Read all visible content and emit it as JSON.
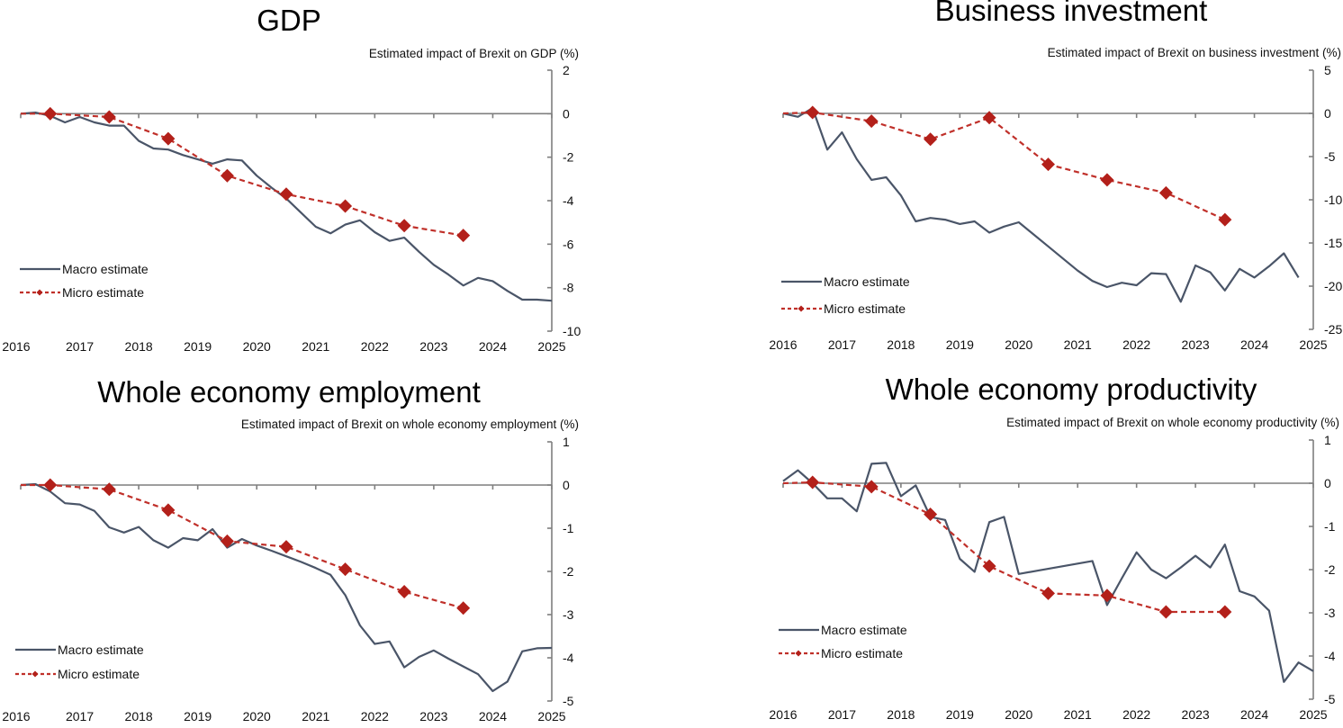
{
  "colors": {
    "macro": "#4a5568",
    "micro": "#b3201a",
    "axis": "#7f7f7f"
  },
  "chart_data": [
    {
      "type": "line",
      "title": "GDP",
      "ylabel": "Estimated impact of Brexit on GDP (%)",
      "xlabel": "",
      "xlim": [
        2016,
        2025
      ],
      "ylim": [
        -10,
        2
      ],
      "xticks": [
        "2016",
        "2017",
        "2018",
        "2019",
        "2020",
        "2021",
        "2022",
        "2023",
        "2024",
        "2025"
      ],
      "yticks": [
        "2",
        "0",
        "-2",
        "-4",
        "-6",
        "-8",
        "-10"
      ],
      "ytick_values": [
        2,
        0,
        -2,
        -4,
        -6,
        -8,
        -10
      ],
      "legend": [
        "Macro estimate",
        "Micro estimate"
      ],
      "legend_position": "bottom-left",
      "series": [
        {
          "name": "Macro estimate",
          "x": [
            2016.0,
            2016.25,
            2016.5,
            2016.75,
            2017.0,
            2017.25,
            2017.5,
            2017.75,
            2018.0,
            2018.25,
            2018.5,
            2018.75,
            2019.0,
            2019.25,
            2019.5,
            2019.75,
            2020.0,
            2020.25,
            2020.5,
            2020.75,
            2021.0,
            2021.25,
            2021.5,
            2021.75,
            2022.0,
            2022.25,
            2022.5,
            2022.75,
            2023.0,
            2023.25,
            2023.5,
            2023.75,
            2024.0,
            2024.25,
            2024.5,
            2024.75,
            2025.0
          ],
          "values": [
            0.0,
            0.05,
            -0.1,
            -0.4,
            -0.15,
            -0.4,
            -0.55,
            -0.55,
            -1.25,
            -1.6,
            -1.65,
            -1.9,
            -2.1,
            -2.3,
            -2.1,
            -2.15,
            -2.85,
            -3.4,
            -3.9,
            -4.55,
            -5.2,
            -5.5,
            -5.1,
            -4.9,
            -5.45,
            -5.85,
            -5.7,
            -6.35,
            -6.95,
            -7.4,
            -7.9,
            -7.55,
            -7.7,
            -8.15,
            -8.55,
            -8.55,
            -8.6
          ]
        },
        {
          "name": "Micro estimate",
          "x": [
            2016.0,
            2016.5,
            2017.5,
            2018.5,
            2019.5,
            2020.5,
            2021.5,
            2022.5,
            2023.5
          ],
          "values": [
            0.0,
            0.0,
            -0.15,
            -1.15,
            -2.85,
            -3.7,
            -4.25,
            -5.15,
            -5.6
          ],
          "markers": [
            false,
            true,
            true,
            true,
            true,
            true,
            true,
            true,
            true
          ]
        }
      ]
    },
    {
      "type": "line",
      "title": "Business investment",
      "ylabel": "Estimated impact of Brexit on business investment (%)",
      "xlabel": "",
      "xlim": [
        2016,
        2025
      ],
      "ylim": [
        -25,
        5
      ],
      "xticks": [
        "2016",
        "2017",
        "2018",
        "2019",
        "2020",
        "2021",
        "2022",
        "2023",
        "2024",
        "2025"
      ],
      "yticks": [
        "5",
        "0",
        "-5",
        "-10",
        "-15",
        "-20",
        "-25"
      ],
      "ytick_values": [
        5,
        0,
        -5,
        -10,
        -15,
        -20,
        -25
      ],
      "legend": [
        "Macro estimate",
        "Micro estimate"
      ],
      "legend_position": "bottom-left",
      "series": [
        {
          "name": "Macro estimate",
          "x": [
            2016.0,
            2016.25,
            2016.5,
            2016.75,
            2017.0,
            2017.25,
            2017.5,
            2017.75,
            2018.0,
            2018.25,
            2018.5,
            2018.75,
            2019.0,
            2019.25,
            2019.5,
            2019.75,
            2020.0,
            2020.25,
            2020.5,
            2020.75,
            2021.0,
            2021.25,
            2021.5,
            2021.75,
            2022.0,
            2022.25,
            2022.5,
            2022.75,
            2023.0,
            2023.25,
            2023.5,
            2023.75,
            2024.0,
            2024.25,
            2024.5,
            2024.75
          ],
          "values": [
            0.0,
            -0.4,
            0.6,
            -4.2,
            -2.2,
            -5.3,
            -7.7,
            -7.4,
            -9.5,
            -12.5,
            -12.1,
            -12.3,
            -12.8,
            -12.5,
            -13.8,
            -13.1,
            -12.6,
            -14.0,
            -15.4,
            -16.8,
            -18.2,
            -19.4,
            -20.1,
            -19.6,
            -19.9,
            -18.5,
            -18.6,
            -21.8,
            -17.6,
            -18.4,
            -20.5,
            -18.0,
            -19.0,
            -17.7,
            -16.2,
            -19.0
          ]
        },
        {
          "name": "Micro estimate",
          "x": [
            2016.0,
            2016.5,
            2017.5,
            2018.5,
            2019.5,
            2020.5,
            2021.5,
            2022.5,
            2023.5
          ],
          "values": [
            0.0,
            0.1,
            -0.9,
            -3.0,
            -0.5,
            -5.9,
            -7.7,
            -9.2,
            -12.3
          ],
          "markers": [
            false,
            true,
            true,
            true,
            true,
            true,
            true,
            true,
            true
          ]
        }
      ]
    },
    {
      "type": "line",
      "title": "Whole economy employment",
      "ylabel": "Estimated impact of Brexit on whole economy employment (%)",
      "xlabel": "",
      "xlim": [
        2016,
        2025
      ],
      "ylim": [
        -5,
        1
      ],
      "xticks": [
        "2016",
        "2017",
        "2018",
        "2019",
        "2020",
        "2021",
        "2022",
        "2023",
        "2024",
        "2025"
      ],
      "yticks": [
        "1",
        "0",
        "-1",
        "-2",
        "-3",
        "-4",
        "-5"
      ],
      "ytick_values": [
        1,
        0,
        -1,
        -2,
        -3,
        -4,
        -5
      ],
      "legend": [
        "Macro estimate",
        "Micro estimate"
      ],
      "legend_position": "bottom-left",
      "series": [
        {
          "name": "Macro estimate",
          "x": [
            2016.0,
            2016.25,
            2016.5,
            2016.75,
            2017.0,
            2017.25,
            2017.5,
            2017.75,
            2018.0,
            2018.25,
            2018.5,
            2018.75,
            2019.0,
            2019.25,
            2019.5,
            2019.75,
            2020.0,
            2020.25,
            2020.5,
            2020.75,
            2021.0,
            2021.25,
            2021.5,
            2021.75,
            2022.0,
            2022.25,
            2022.5,
            2022.75,
            2023.0,
            2023.25,
            2023.5,
            2023.75,
            2024.0,
            2024.25,
            2024.5,
            2024.75,
            2025.0
          ],
          "values": [
            0.0,
            0.02,
            -0.15,
            -0.42,
            -0.45,
            -0.6,
            -0.98,
            -1.1,
            -0.97,
            -1.28,
            -1.45,
            -1.23,
            -1.28,
            -1.02,
            -1.45,
            -1.25,
            -1.4,
            -1.52,
            -1.65,
            -1.78,
            -1.92,
            -2.08,
            -2.55,
            -3.25,
            -3.68,
            -3.62,
            -4.22,
            -3.98,
            -3.83,
            -4.02,
            -4.2,
            -4.38,
            -4.77,
            -4.55,
            -3.85,
            -3.78,
            -3.77
          ]
        },
        {
          "name": "Micro estimate",
          "x": [
            2016.0,
            2016.5,
            2017.5,
            2018.5,
            2019.5,
            2020.5,
            2021.5,
            2022.5,
            2023.5
          ],
          "values": [
            0.0,
            0.0,
            -0.1,
            -0.58,
            -1.3,
            -1.43,
            -1.95,
            -2.47,
            -2.85
          ],
          "markers": [
            false,
            true,
            true,
            true,
            true,
            true,
            true,
            true,
            true
          ]
        }
      ]
    },
    {
      "type": "line",
      "title": "Whole economy productivity",
      "ylabel": "Estimated impact of Brexit on whole economy productivity (%)",
      "xlabel": "",
      "xlim": [
        2016,
        2025
      ],
      "ylim": [
        -5,
        1
      ],
      "xticks": [
        "2016",
        "2017",
        "2018",
        "2019",
        "2020",
        "2021",
        "2022",
        "2023",
        "2024",
        "2025"
      ],
      "yticks": [
        "1",
        "0",
        "-1",
        "-2",
        "-3",
        "-4",
        "-5"
      ],
      "ytick_values": [
        1,
        0,
        -1,
        -2,
        -3,
        -4,
        -5
      ],
      "legend": [
        "Macro estimate",
        "Micro estimate"
      ],
      "legend_position": "bottom-left",
      "series": [
        {
          "name": "Macro estimate",
          "x": [
            2016.0,
            2016.25,
            2016.5,
            2016.75,
            2017.0,
            2017.25,
            2017.5,
            2017.75,
            2018.0,
            2018.25,
            2018.5,
            2018.75,
            2019.0,
            2019.25,
            2019.5,
            2019.75,
            2020.0,
            2021.25,
            2021.5,
            2021.75,
            2022.0,
            2022.25,
            2022.5,
            2022.75,
            2023.0,
            2023.25,
            2023.5,
            2023.75,
            2024.0,
            2024.25,
            2024.5,
            2024.75,
            2025.0
          ],
          "values": [
            0.05,
            0.3,
            0.0,
            -0.35,
            -0.35,
            -0.65,
            0.45,
            0.47,
            -0.3,
            -0.05,
            -0.78,
            -0.85,
            -1.75,
            -2.05,
            -0.9,
            -0.78,
            -2.1,
            -1.8,
            -2.82,
            -2.2,
            -1.6,
            -2.0,
            -2.2,
            -1.95,
            -1.68,
            -1.95,
            -1.42,
            -2.5,
            -2.62,
            -2.95,
            -4.6,
            -4.15,
            -4.35
          ]
        },
        {
          "name": "Micro estimate",
          "x": [
            2016.0,
            2016.5,
            2017.5,
            2018.5,
            2019.5,
            2020.5,
            2021.5,
            2022.5,
            2023.5
          ],
          "values": [
            0.0,
            0.02,
            -0.08,
            -0.72,
            -1.92,
            -2.55,
            -2.6,
            -2.98,
            -2.98
          ],
          "markers": [
            false,
            true,
            true,
            true,
            true,
            true,
            true,
            true,
            true
          ]
        }
      ]
    }
  ]
}
